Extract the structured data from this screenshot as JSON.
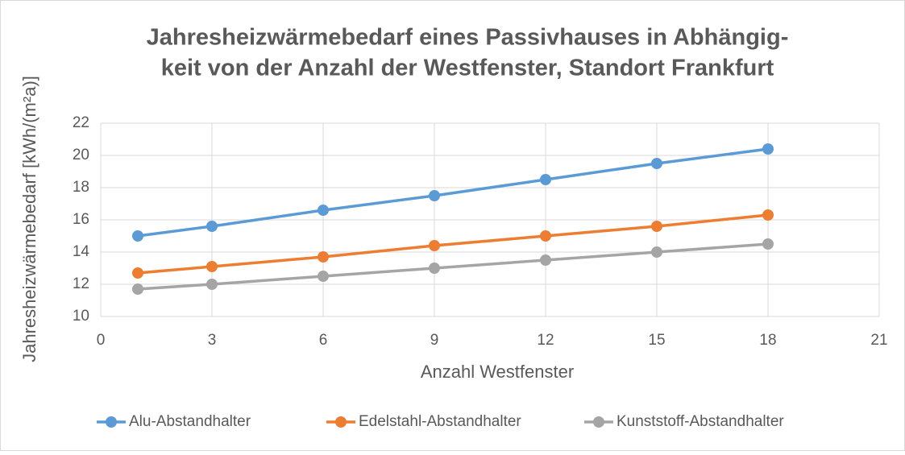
{
  "chart_data": {
    "type": "line",
    "title": [
      "Jahresheizwärmebedarf eines Passivhauses in Abhängig-",
      "keit von der Anzahl der Westfenster, Standort Frankfurt"
    ],
    "x_label": "Anzahl Westfenster",
    "y_label": "Jahresheizwärmebedarf [kWh/(m²a)]",
    "x": [
      1,
      3,
      6,
      9,
      12,
      15,
      18
    ],
    "series": [
      {
        "name": "Alu-Abstandhalter",
        "color": "#5b9bd5",
        "values": [
          15,
          15.6,
          16.6,
          17.5,
          18.5,
          19.5,
          20.4
        ]
      },
      {
        "name": "Edelstahl-Abstandhalter",
        "color": "#ed7d31",
        "values": [
          12.7,
          13.1,
          13.7,
          14.4,
          15.0,
          15.6,
          16.3
        ]
      },
      {
        "name": "Kunststoff-Abstandhalter",
        "color": "#a5a5a5",
        "values": [
          11.7,
          12.0,
          12.5,
          13.0,
          13.5,
          14.0,
          14.5
        ]
      }
    ],
    "xlim": [
      0,
      21
    ],
    "xticks": [
      0,
      3,
      6,
      9,
      12,
      15,
      18,
      21
    ],
    "ylim": [
      10,
      22
    ],
    "yticks": [
      10,
      12,
      14,
      16,
      18,
      20,
      22
    ],
    "grid": true,
    "legend": "bottom"
  }
}
